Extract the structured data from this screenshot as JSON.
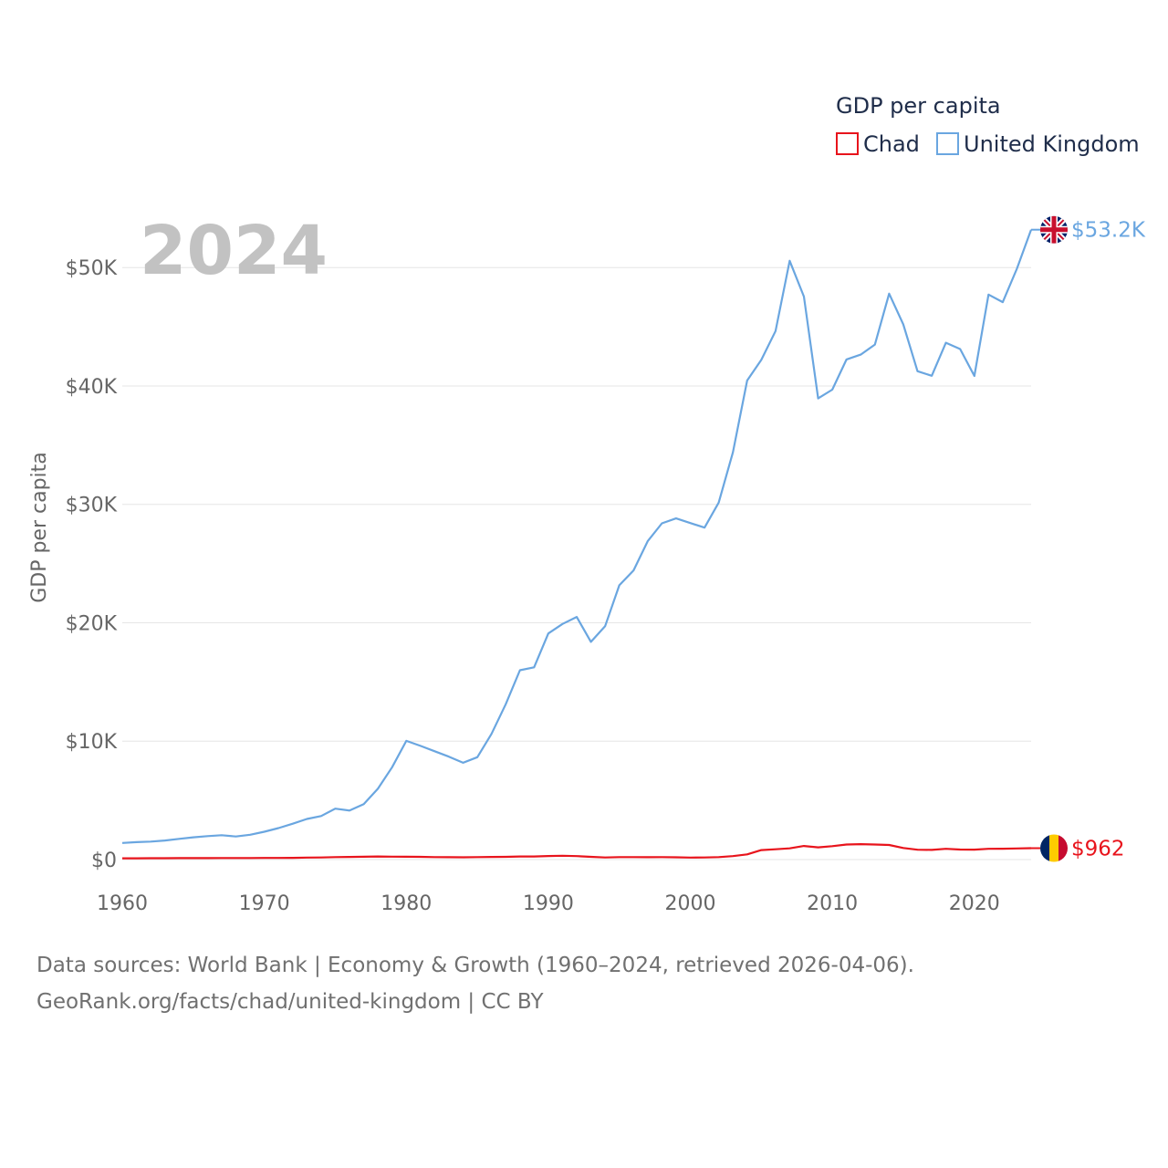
{
  "chart_data": {
    "type": "line",
    "title": "GDP per capita",
    "legend_title": "GDP per capita",
    "legend_position": "top-right",
    "ylabel": "GDP per capita",
    "xlabel": "",
    "year_label": "2024",
    "xlim": [
      1960,
      2024
    ],
    "ylim": [
      0,
      55000
    ],
    "y_ticks": [
      0,
      10000,
      20000,
      30000,
      40000,
      50000
    ],
    "y_tick_labels": [
      "$0",
      "$10K",
      "$20K",
      "$30K",
      "$40K",
      "$50K"
    ],
    "x_ticks": [
      1960,
      1970,
      1980,
      1990,
      2000,
      2010,
      2020
    ],
    "x_tick_labels": [
      "1960",
      "1970",
      "1980",
      "1990",
      "2000",
      "2010",
      "2020"
    ],
    "grid": true,
    "x_start": 1960,
    "series": [
      {
        "name": "Chad",
        "color": "#e8141c",
        "end_label": "$962",
        "flag": "chad-flag-icon",
        "flag_colors": [
          "#002664",
          "#fecb00",
          "#c60c30"
        ],
        "values": [
          105,
          110,
          113,
          116,
          120,
          124,
          127,
          130,
          128,
          133,
          135,
          140,
          150,
          170,
          180,
          210,
          220,
          240,
          260,
          250,
          240,
          230,
          210,
          200,
          190,
          210,
          220,
          230,
          260,
          260,
          300,
          320,
          290,
          230,
          180,
          210,
          210,
          200,
          210,
          190,
          170,
          180,
          210,
          290,
          440,
          800,
          870,
          950,
          1150,
          1030,
          1130,
          1270,
          1300,
          1270,
          1230,
          980,
          830,
          820,
          910,
          850,
          840,
          910,
          920,
          940,
          962
        ]
      },
      {
        "name": "United Kingdom",
        "color": "#6aa6e0",
        "end_label": "$53.2K",
        "flag": "uk-flag-icon",
        "flag_colors": [
          "#012169",
          "#ffffff",
          "#c8102e"
        ],
        "values": [
          1400,
          1470,
          1520,
          1610,
          1750,
          1880,
          1980,
          2060,
          1950,
          2100,
          2350,
          2660,
          3030,
          3430,
          3680,
          4300,
          4140,
          4680,
          5980,
          7800,
          10030,
          9600,
          9150,
          8690,
          8180,
          8650,
          10610,
          13120,
          15990,
          16240,
          19100,
          19900,
          20490,
          18390,
          19710,
          23170,
          24420,
          26890,
          28400,
          28820,
          28420,
          28040,
          30150,
          34400,
          40460,
          42200,
          44640,
          50570,
          47550,
          38950,
          39690,
          42240,
          42650,
          43500,
          47800,
          45200,
          41250,
          40860,
          43650,
          43120,
          40850,
          47720,
          47080,
          49900,
          53200
        ]
      }
    ]
  },
  "footer": {
    "source_line": "Data sources: World Bank | Economy & Growth (1960–2024, retrieved 2026-04-06).",
    "credit_line": "GeoRank.org/facts/chad/united-kingdom | CC BY"
  }
}
